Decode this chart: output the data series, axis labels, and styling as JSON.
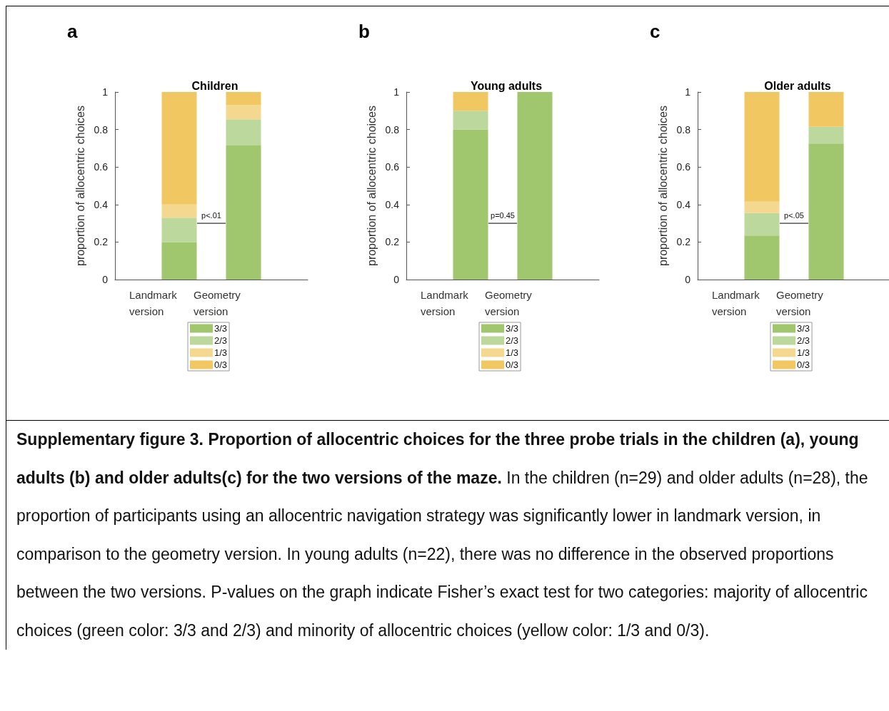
{
  "chart_data": [
    {
      "type": "bar",
      "title": "Children",
      "ylabel": "proportion of allocentric choices",
      "categories": [
        "Landmark\nversion",
        "Geometry\nversion"
      ],
      "stacked": true,
      "legend": "bottom",
      "grid": false,
      "ylim": [
        0,
        1
      ],
      "yticks": [
        0,
        0.2,
        0.4,
        0.6,
        0.8,
        1
      ],
      "annotations": [
        "a",
        "p<.01"
      ],
      "series": [
        {
          "name": "3/3",
          "color": "#a0c66e",
          "values": [
            0.2,
            0.715
          ]
        },
        {
          "name": "2/3",
          "color": "#bdd89c",
          "values": [
            0.13,
            0.14
          ]
        },
        {
          "name": "1/3",
          "color": "#f5d890",
          "values": [
            0.07,
            0.075
          ]
        },
        {
          "name": "0/3",
          "color": "#f1c762",
          "values": [
            0.6,
            0.07
          ]
        }
      ]
    },
    {
      "type": "bar",
      "title": "Young adults",
      "ylabel": "proportion of allocentric choices",
      "categories": [
        "Landmark\nversion",
        "Geometry\nversion"
      ],
      "stacked": true,
      "legend": "bottom",
      "grid": false,
      "ylim": [
        0,
        1
      ],
      "yticks": [
        0,
        0.2,
        0.4,
        0.6,
        0.8,
        1
      ],
      "annotations": [
        "b",
        "p=0.45"
      ],
      "series": [
        {
          "name": "3/3",
          "color": "#a0c66e",
          "values": [
            0.8,
            1
          ]
        },
        {
          "name": "2/3",
          "color": "#bdd89c",
          "values": [
            0.1,
            0
          ]
        },
        {
          "name": "1/3",
          "color": "#f5d890",
          "values": [
            0,
            0
          ]
        },
        {
          "name": "0/3",
          "color": "#f1c762",
          "values": [
            0.1,
            0
          ]
        }
      ]
    },
    {
      "type": "bar",
      "title": "Older adults",
      "ylabel": "proportion of allocentric choices",
      "categories": [
        "Landmark\nversion",
        "Geometry\nversion"
      ],
      "stacked": true,
      "legend": "bottom",
      "grid": false,
      "ylim": [
        0,
        1
      ],
      "yticks": [
        0,
        0.2,
        0.4,
        0.6,
        0.8,
        1
      ],
      "annotations": [
        "c",
        "p<.05"
      ],
      "series": [
        {
          "name": "3/3",
          "color": "#a0c66e",
          "values": [
            0.235,
            0.725
          ]
        },
        {
          "name": "2/3",
          "color": "#bdd89c",
          "values": [
            0.12,
            0.09
          ]
        },
        {
          "name": "1/3",
          "color": "#f5d890",
          "values": [
            0.06,
            0
          ]
        },
        {
          "name": "0/3",
          "color": "#f1c762",
          "values": [
            0.585,
            0.185
          ]
        }
      ]
    },
    {
      "type": "other",
      "annotations": [
        "Supplementary figure 3. Proportion of allocentric choices for the three probe trials in the children (a), young adults (b) and older adults(c) for the two versions of the maze.",
        "In the children (n=29) and older adults (n=28), the proportion of participants using an allocentric navigation strategy was significantly lower in landmark version, in comparison to the geometry version. In young adults (n=22), there was no difference in the observed proportions between the two versions. P-values on the graph indicate Fisher’s exact test for two categories: majority of allocentric choices (green color: 3/3 and 2/3) and minority of allocentric choices (yellow color: 1/3 and 0/3)."
      ]
    }
  ]
}
